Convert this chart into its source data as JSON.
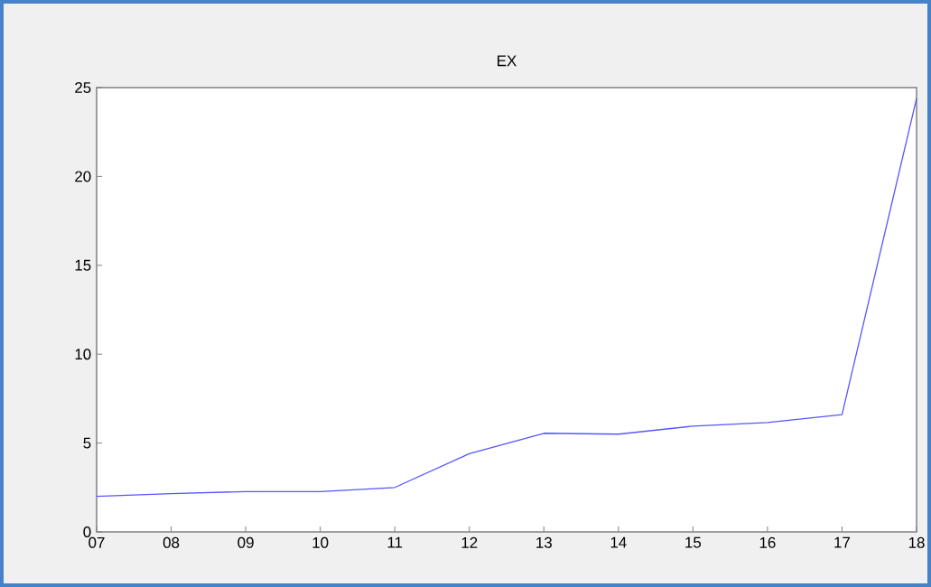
{
  "chart_data": {
    "type": "line",
    "title": "EX",
    "categories": [
      "07",
      "08",
      "09",
      "10",
      "11",
      "12",
      "13",
      "14",
      "15",
      "16",
      "17",
      "18"
    ],
    "series": [
      {
        "color": "#5555ff",
        "values": [
          2.0,
          2.15,
          2.27,
          2.27,
          2.5,
          4.4,
          5.55,
          5.5,
          5.95,
          6.15,
          6.6,
          24.4
        ]
      }
    ],
    "ylim": [
      0,
      25
    ],
    "yticks": [
      0,
      5,
      10,
      15,
      20,
      25
    ],
    "grid": false,
    "marker": "none",
    "line_style": "solid"
  }
}
